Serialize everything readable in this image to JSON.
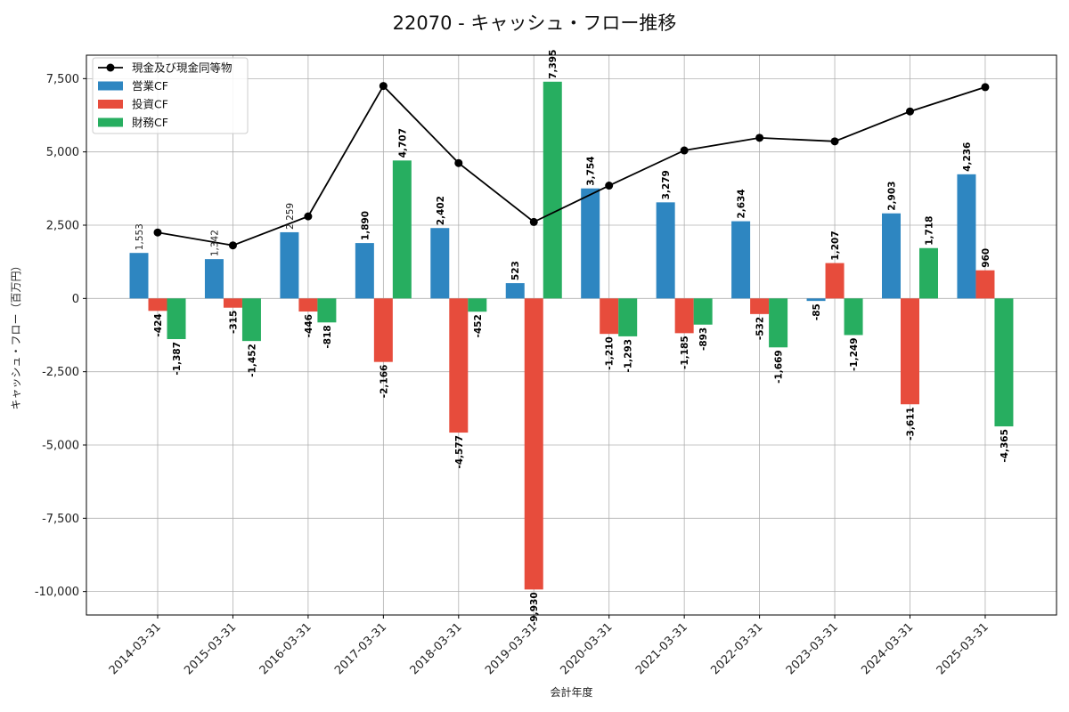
{
  "chart_data": {
    "type": "bar",
    "title": "22070 - キャッシュ・フロー推移",
    "xlabel": "会計年度",
    "ylabel": "キャッシュ・フロー（百万円）",
    "ylim": [
      -10800,
      8300
    ],
    "yticks": [
      -10000,
      -7500,
      -5000,
      -2500,
      0,
      2500,
      5000,
      7500
    ],
    "ytick_labels": [
      "-10,000",
      "-7,500",
      "-5,000",
      "-2,500",
      "0",
      "2,500",
      "5,000",
      "7,500"
    ],
    "grid": true,
    "legend_position": "top-left",
    "categories": [
      "2014-03-31",
      "2015-03-31",
      "2016-03-31",
      "2017-03-31",
      "2018-03-31",
      "2019-03-31",
      "2020-03-31",
      "2021-03-31",
      "2022-03-31",
      "2023-03-31",
      "2024-03-31",
      "2025-03-31"
    ],
    "series": [
      {
        "name": "営業CF",
        "kind": "bar",
        "color": "#2e86c1",
        "values": [
          1553,
          1342,
          2259,
          1890,
          2402,
          523,
          3754,
          3279,
          2634,
          -85,
          2903,
          4236
        ],
        "labels": [
          "1,553",
          "1,342",
          "2,259",
          "1,890",
          "2,402",
          "523",
          "3,754",
          "3,279",
          "2,634",
          "-85",
          "2,903",
          "4,236"
        ]
      },
      {
        "name": "投資CF",
        "kind": "bar",
        "color": "#e74c3c",
        "values": [
          -424,
          -315,
          -446,
          -2166,
          -4577,
          -9930,
          -1210,
          -1185,
          -532,
          1207,
          -3611,
          960
        ],
        "labels": [
          "-424",
          "-315",
          "-446",
          "-2,166",
          "-4,577",
          "-9,930",
          "-1,210",
          "-1,185",
          "-532",
          "1,207",
          "-3,611",
          "960"
        ]
      },
      {
        "name": "財務CF",
        "kind": "bar",
        "color": "#27ae60",
        "values": [
          -1387,
          -1452,
          -818,
          4707,
          -452,
          7395,
          -1293,
          -893,
          -1669,
          -1249,
          1718,
          -4365
        ],
        "labels": [
          "-1,387",
          "-1,452",
          "-818",
          "4,707",
          "-452",
          "7,395",
          "-1,293",
          "-893",
          "-1,669",
          "-1,249",
          "1,718",
          "-4,365"
        ]
      },
      {
        "name": "現金及び現金同等物",
        "kind": "line",
        "color": "#000000",
        "values": [
          2250,
          1810,
          2800,
          7250,
          4620,
          2610,
          3850,
          5050,
          5480,
          5360,
          6380,
          7210
        ]
      }
    ]
  }
}
